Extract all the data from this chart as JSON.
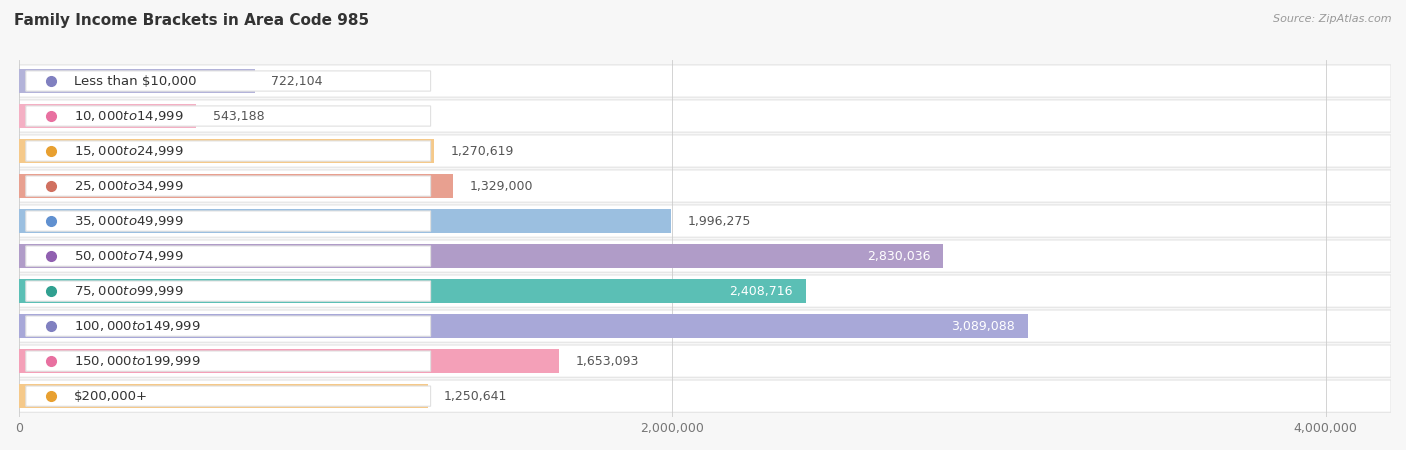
{
  "title": "Family Income Brackets in Area Code 985",
  "source": "Source: ZipAtlas.com",
  "categories": [
    "Less than $10,000",
    "$10,000 to $14,999",
    "$15,000 to $24,999",
    "$25,000 to $34,999",
    "$35,000 to $49,999",
    "$50,000 to $74,999",
    "$75,000 to $99,999",
    "$100,000 to $149,999",
    "$150,000 to $199,999",
    "$200,000+"
  ],
  "values": [
    722104,
    543188,
    1270619,
    1329000,
    1996275,
    2830036,
    2408716,
    3089088,
    1653093,
    1250641
  ],
  "bar_colors": [
    "#b3b3d9",
    "#f4b0c4",
    "#f5c98a",
    "#e8a090",
    "#9bbfe0",
    "#b09cc8",
    "#5bbfb5",
    "#a8a8d8",
    "#f4a0b8",
    "#f5c98a"
  ],
  "dot_colors": [
    "#8080c0",
    "#e870a0",
    "#e8a030",
    "#d07060",
    "#6090d0",
    "#9060b0",
    "#30a090",
    "#8080c0",
    "#e870a0",
    "#e8a030"
  ],
  "value_labels": [
    "722,104",
    "543,188",
    "1,270,619",
    "1,329,000",
    "1,996,275",
    "2,830,036",
    "2,408,716",
    "3,089,088",
    "1,653,093",
    "1,250,641"
  ],
  "xlim": [
    0,
    4200000
  ],
  "xticks": [
    0,
    2000000,
    4000000
  ],
  "xtick_labels": [
    "0",
    "2,000,000",
    "4,000,000"
  ],
  "bg_color": "#f7f7f7",
  "row_bg_color": "#ffffff",
  "title_fontsize": 11,
  "label_fontsize": 9.5,
  "value_fontsize": 9
}
